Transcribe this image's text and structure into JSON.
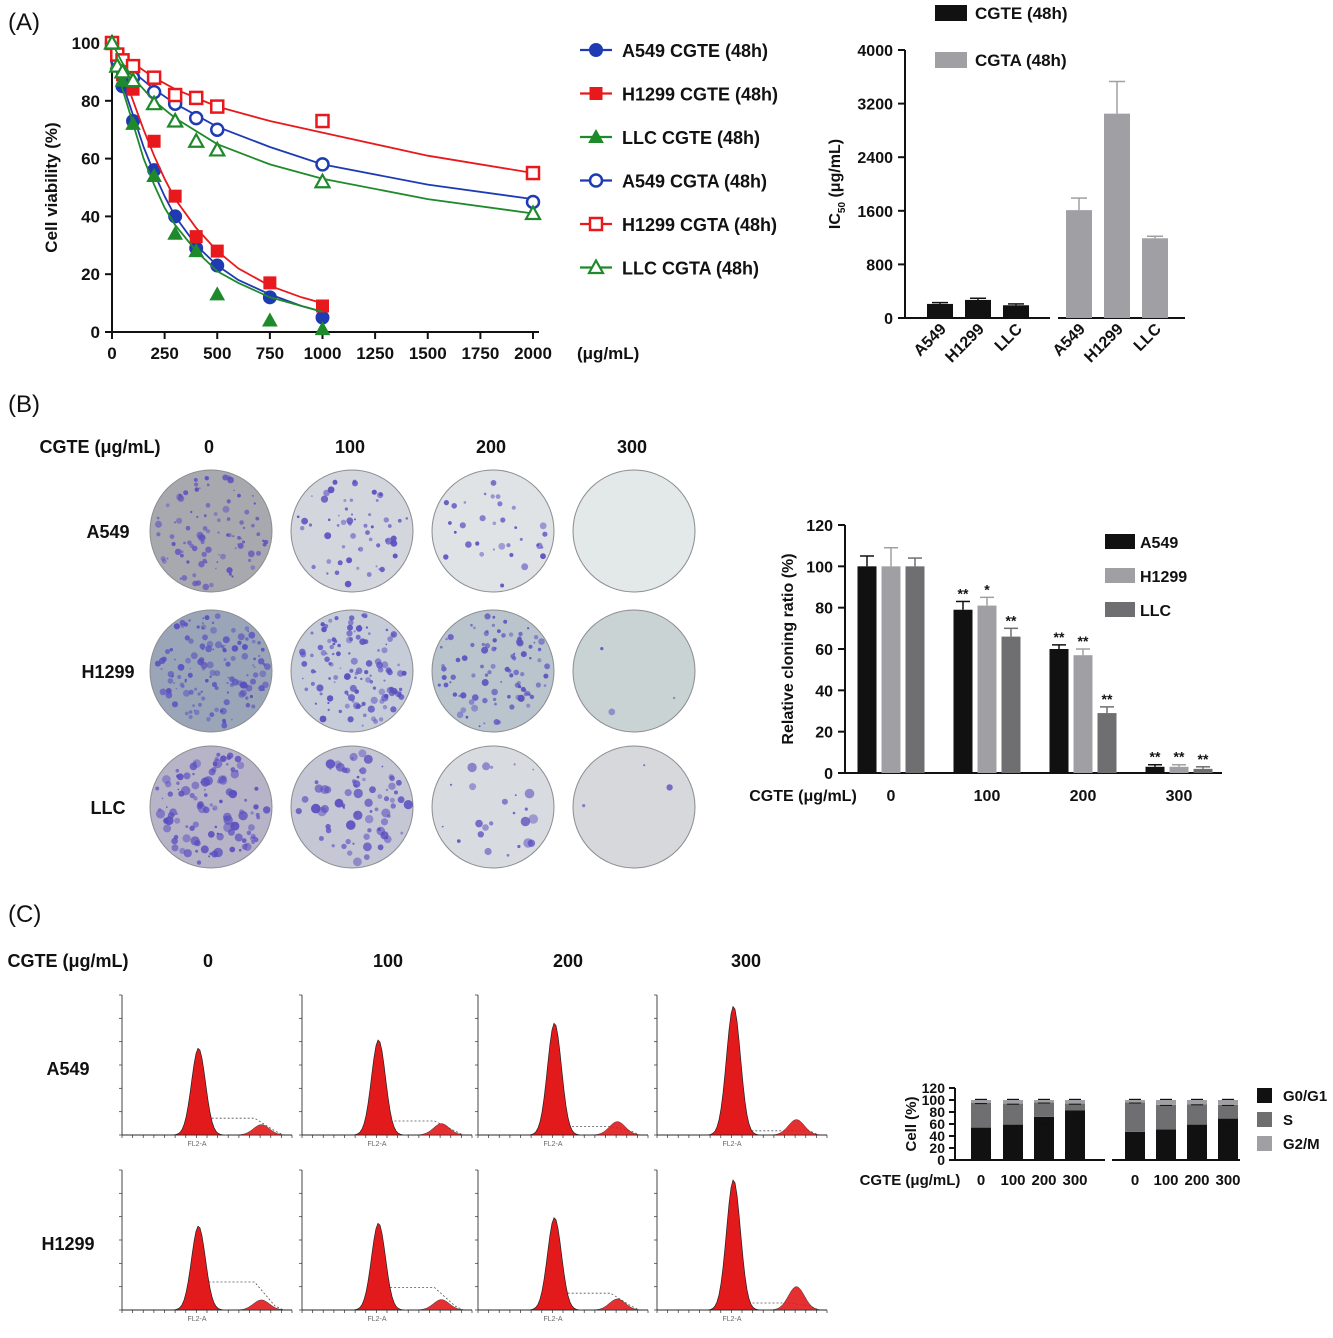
{
  "panels": {
    "A": "(A)",
    "B": "(B)",
    "C": "(C)"
  },
  "row_labels": {
    "conc_label": "CGTE (μg/mL)",
    "concs": [
      "0",
      "100",
      "200",
      "300"
    ],
    "cells_b": [
      "A549",
      "H1299",
      "LLC"
    ],
    "cells_c": [
      "A549",
      "H1299"
    ],
    "flow_axis": "FL2-A"
  },
  "colors": {
    "blue": "#1f3bb3",
    "red": "#e8191c",
    "green": "#1e8a2b",
    "black": "#111111",
    "gray": "#a0a0a4",
    "dark_gray": "#6f6f71",
    "stain": "#5a4fc0",
    "hist": "#e31a1c"
  },
  "plates": {
    "A549": [
      {
        "density": 0.55,
        "bg": "#a8a9ae"
      },
      {
        "density": 0.35,
        "bg": "#d4d6de"
      },
      {
        "density": 0.2,
        "bg": "#dfe3e6"
      },
      {
        "density": 0,
        "bg": "#e3e8e8"
      }
    ],
    "H1299": [
      {
        "density": 0.8,
        "bg": "#9aa6b8"
      },
      {
        "density": 0.75,
        "bg": "#c6ccd8"
      },
      {
        "density": 0.55,
        "bg": "#b9c4cc"
      },
      {
        "density": 0.02,
        "bg": "#c9d3d4"
      }
    ],
    "LLC": [
      {
        "density": 0.7,
        "bg": "#b8b4c8"
      },
      {
        "density": 0.45,
        "bg": "#c6c7d4"
      },
      {
        "density": 0.15,
        "bg": "#d8dbdf"
      },
      {
        "density": 0.02,
        "bg": "#d6d8db"
      }
    ]
  },
  "chart_data": [
    {
      "type": "scatter",
      "x_unit": "(μg/mL)",
      "ylabel": "Cell viability (%)",
      "xlim": [
        0,
        2000
      ],
      "ylim": [
        0,
        100
      ],
      "xticks": [
        0,
        250,
        500,
        750,
        1000,
        1250,
        1500,
        1750,
        2000
      ],
      "yticks": [
        0,
        20,
        40,
        60,
        80,
        100
      ],
      "legend_position": "right",
      "series": [
        {
          "name": "A549 CGTE (48h)",
          "color": "blue",
          "marker": "circle-filled",
          "x": [
            0,
            25,
            50,
            100,
            200,
            300,
            400,
            500,
            750,
            1000
          ],
          "y": [
            100,
            94,
            85,
            73,
            56,
            40,
            29,
            23,
            12,
            5
          ],
          "curve_x": [
            0,
            25,
            50,
            100,
            150,
            200,
            250,
            300,
            400,
            500,
            600,
            750,
            900,
            1000
          ],
          "curve_y": [
            100,
            93,
            86,
            75,
            64,
            55,
            47,
            40,
            30,
            23,
            18,
            13,
            9,
            7
          ]
        },
        {
          "name": "H1299 CGTE (48h)",
          "color": "red",
          "marker": "square-filled",
          "x": [
            0,
            25,
            50,
            100,
            200,
            300,
            400,
            500,
            750,
            1000
          ],
          "y": [
            100,
            93,
            89,
            84,
            66,
            47,
            33,
            28,
            17,
            9
          ],
          "curve_x": [
            0,
            25,
            50,
            100,
            150,
            200,
            250,
            300,
            400,
            500,
            600,
            750,
            900,
            1000
          ],
          "curve_y": [
            100,
            95,
            90,
            80,
            70,
            61,
            53,
            46,
            36,
            28,
            22,
            16,
            12,
            10
          ]
        },
        {
          "name": "LLC CGTE (48h)",
          "color": "green",
          "marker": "triangle-filled",
          "x": [
            0,
            25,
            50,
            100,
            200,
            300,
            400,
            500,
            750,
            1000
          ],
          "y": [
            100,
            93,
            87,
            72,
            54,
            34,
            28,
            13,
            4,
            1
          ],
          "curve_x": [
            0,
            25,
            50,
            100,
            150,
            200,
            250,
            300,
            400,
            500,
            600,
            750,
            900,
            1000
          ],
          "curve_y": [
            100,
            92,
            84,
            72,
            60,
            51,
            43,
            37,
            28,
            21,
            17,
            12,
            9,
            7
          ]
        },
        {
          "name": "A549 CGTA (48h)",
          "color": "blue",
          "marker": "circle-open",
          "x": [
            0,
            25,
            50,
            100,
            200,
            300,
            400,
            500,
            1000,
            2000
          ],
          "y": [
            100,
            94,
            91,
            88,
            83,
            79,
            74,
            70,
            58,
            45
          ],
          "curve_x": [
            0,
            50,
            100,
            200,
            300,
            500,
            750,
            1000,
            1500,
            2000
          ],
          "curve_y": [
            100,
            94,
            90,
            84,
            79,
            71,
            64,
            58,
            51,
            46
          ]
        },
        {
          "name": "H1299 CGTA (48h)",
          "color": "red",
          "marker": "square-open",
          "x": [
            0,
            25,
            50,
            100,
            200,
            300,
            400,
            500,
            1000,
            2000
          ],
          "y": [
            100,
            96,
            94,
            92,
            88,
            82,
            81,
            78,
            73,
            55
          ],
          "curve_x": [
            0,
            50,
            100,
            200,
            300,
            500,
            750,
            1000,
            1500,
            2000
          ],
          "curve_y": [
            100,
            96,
            93,
            88,
            84,
            78,
            73,
            69,
            61,
            55
          ]
        },
        {
          "name": "LLC CGTA (48h)",
          "color": "green",
          "marker": "triangle-open",
          "x": [
            0,
            25,
            50,
            100,
            200,
            300,
            400,
            500,
            1000,
            2000
          ],
          "y": [
            100,
            92,
            90,
            87,
            79,
            73,
            66,
            63,
            52,
            41
          ],
          "curve_x": [
            0,
            50,
            100,
            200,
            300,
            500,
            750,
            1000,
            1500,
            2000
          ],
          "curve_y": [
            100,
            93,
            88,
            80,
            74,
            65,
            58,
            53,
            46,
            41
          ]
        }
      ]
    },
    {
      "type": "bar",
      "ylabel": "IC50 (μg/mL)",
      "ylabel_main": "IC",
      "ylabel_sub": "50",
      "ylabel_unit": " (μg/mL)",
      "ylim": [
        0,
        4000
      ],
      "yticks": [
        0,
        800,
        1600,
        2400,
        3200,
        4000
      ],
      "legend_position": "top",
      "series": [
        {
          "name": "CGTE (48h)",
          "color": "black",
          "categories": [
            "A549",
            "H1299",
            "LLC"
          ],
          "values": [
            210,
            270,
            190
          ],
          "errors": [
            20,
            25,
            20
          ]
        },
        {
          "name": "CGTA (48h)",
          "color": "gray",
          "categories": [
            "A549",
            "H1299",
            "LLC"
          ],
          "values": [
            1610,
            3050,
            1190
          ],
          "errors": [
            180,
            480,
            30
          ]
        }
      ]
    },
    {
      "type": "bar",
      "ylabel": "Relative cloning ratio (%)",
      "xlabel": "CGTE (μg/mL)",
      "categories": [
        "0",
        "100",
        "200",
        "300"
      ],
      "ylim": [
        0,
        120
      ],
      "yticks": [
        0,
        20,
        40,
        60,
        80,
        100,
        120
      ],
      "legend_position": "top-right",
      "series": [
        {
          "name": "A549",
          "color": "black",
          "values": [
            100,
            79,
            60,
            3
          ],
          "errors": [
            5,
            4,
            2,
            1
          ],
          "sig": [
            "",
            "**",
            "**",
            "**"
          ]
        },
        {
          "name": "H1299",
          "color": "gray",
          "values": [
            100,
            81,
            57,
            3
          ],
          "errors": [
            9,
            4,
            3,
            1
          ],
          "sig": [
            "",
            "*",
            "**",
            "**"
          ]
        },
        {
          "name": "LLC",
          "color": "dark_gray",
          "values": [
            100,
            66,
            29,
            2
          ],
          "errors": [
            4,
            4,
            3,
            1
          ],
          "sig": [
            "",
            "**",
            "**",
            "**"
          ]
        }
      ]
    },
    {
      "type": "bar",
      "stacked": true,
      "ylabel": "Cell (%)",
      "xlabel": "CGTE (μg/mL)",
      "categories": [
        "0",
        "100",
        "200",
        "300"
      ],
      "ylim": [
        0,
        120
      ],
      "yticks": [
        0,
        20,
        40,
        60,
        80,
        100,
        120
      ],
      "legend_position": "right",
      "groups": [
        {
          "G0G1": [
            54,
            59,
            72,
            83
          ],
          "S": [
            41,
            35,
            24,
            11
          ],
          "G2M": [
            5,
            6,
            4,
            6
          ],
          "sig": [
            "",
            "*",
            "**",
            "**"
          ]
        },
        {
          "G0G1": [
            47,
            51,
            59,
            69
          ],
          "S": [
            49,
            41,
            34,
            23
          ],
          "G2M": [
            4,
            8,
            7,
            8
          ],
          "sig": [
            "",
            "",
            "*",
            "**"
          ]
        }
      ],
      "series": [
        {
          "name": "G0/G1",
          "color": "black"
        },
        {
          "name": "S",
          "color": "dark_gray"
        },
        {
          "name": "G2/M",
          "color": "gray"
        }
      ]
    }
  ]
}
